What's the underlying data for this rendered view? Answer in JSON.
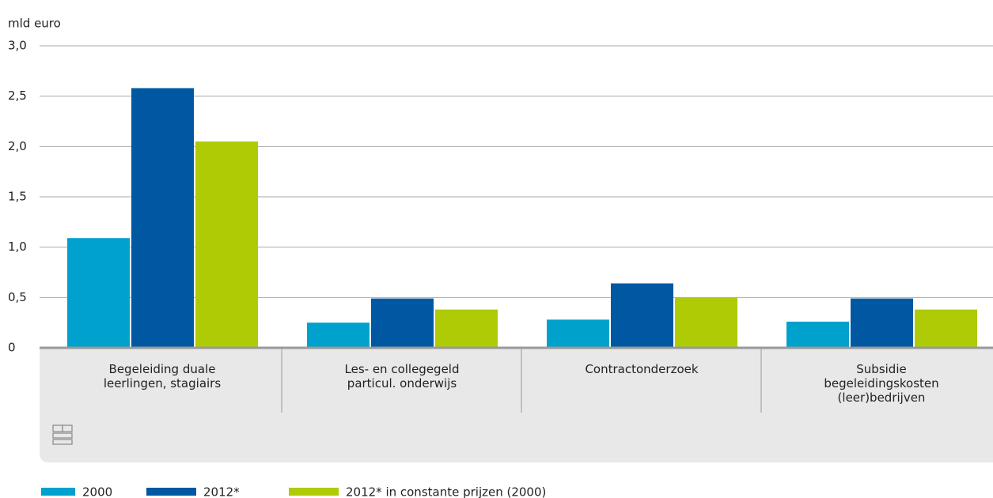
{
  "chart_data": {
    "type": "bar",
    "y_axis_label": "mld euro",
    "categories": [
      "Begeleiding duale leerlingen, stagiairs",
      "Les- en collegegeld particul. onderwijs",
      "Contractonderzoek",
      "Subsidie begeleidingskosten (leer)bedrijven"
    ],
    "series": [
      {
        "name": "2000",
        "color": "#00a1cd",
        "values": [
          1.09,
          0.25,
          0.28,
          0.26
        ]
      },
      {
        "name": "2012*",
        "color": "#0058a3",
        "values": [
          2.58,
          0.49,
          0.64,
          0.49
        ]
      },
      {
        "name": "2012* in constante prijzen (2000)",
        "color": "#afcb05",
        "values": [
          2.05,
          0.38,
          0.5,
          0.38
        ]
      }
    ],
    "ylim": [
      0,
      3
    ],
    "yticks": [
      0,
      {
        "value": 0.5,
        "label": "0,5"
      },
      {
        "value": 1,
        "label": "1,0"
      },
      {
        "value": 1.5,
        "label": "1,5"
      },
      {
        "value": 2,
        "label": "2,0"
      },
      {
        "value": 2.5,
        "label": "2,5"
      },
      {
        "value": 3,
        "label": "3,0"
      }
    ],
    "grid": true,
    "legend": "bottom-left"
  }
}
